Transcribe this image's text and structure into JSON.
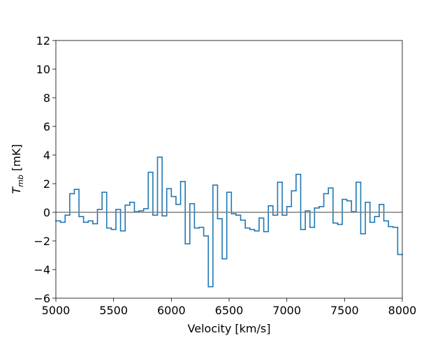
{
  "chart_data": {
    "type": "step",
    "xlabel": "Velocity [km/s]",
    "ylabel": {
      "symbol": "T",
      "subscript": "mb",
      "unit": " [mK]"
    },
    "x": [
      5000,
      5040,
      5080,
      5120,
      5160,
      5200,
      5240,
      5280,
      5320,
      5360,
      5400,
      5440,
      5480,
      5520,
      5560,
      5600,
      5640,
      5680,
      5720,
      5760,
      5800,
      5840,
      5880,
      5920,
      5960,
      6000,
      6040,
      6080,
      6120,
      6160,
      6200,
      6240,
      6280,
      6320,
      6360,
      6400,
      6440,
      6480,
      6520,
      6560,
      6600,
      6640,
      6680,
      6720,
      6760,
      6800,
      6840,
      6880,
      6920,
      6960,
      7000,
      7040,
      7080,
      7120,
      7160,
      7200,
      7240,
      7280,
      7320,
      7360,
      7400,
      7440,
      7480,
      7520,
      7560,
      7600,
      7640,
      7680,
      7720,
      7760,
      7800,
      7840,
      7880,
      7920,
      7960
    ],
    "series": [
      {
        "color": "#1f77b4",
        "values": [
          -0.6,
          -0.7,
          -0.2,
          1.3,
          1.6,
          -0.3,
          -0.7,
          -0.6,
          -0.8,
          0.2,
          1.4,
          -1.1,
          -1.2,
          0.2,
          -1.3,
          0.5,
          0.7,
          0.05,
          0.1,
          0.25,
          2.8,
          -0.2,
          3.85,
          -0.25,
          1.65,
          1.1,
          0.55,
          2.15,
          -2.2,
          0.6,
          -1.1,
          -1.05,
          -1.65,
          -5.2,
          1.9,
          -0.45,
          -3.25,
          1.4,
          -0.1,
          -0.2,
          -0.55,
          -1.1,
          -1.2,
          -1.3,
          -0.4,
          -1.35,
          0.45,
          -0.2,
          2.1,
          -0.2,
          0.4,
          1.5,
          2.65,
          -1.2,
          0.1,
          -1.05,
          0.3,
          0.4,
          1.3,
          1.7,
          -0.75,
          -0.85,
          0.9,
          0.8,
          0.05,
          2.1,
          -1.5,
          0.7,
          -0.7,
          -0.3,
          0.55,
          -0.6,
          -1.0,
          -1.05,
          -2.95
        ]
      }
    ],
    "hline": {
      "value": 0,
      "color": "#808080"
    },
    "xlim": [
      5000,
      8000
    ],
    "xticks": [
      5000,
      5500,
      6000,
      6500,
      7000,
      7500,
      8000
    ],
    "ylim": [
      -6,
      12
    ],
    "yticks": [
      {
        "value": -6,
        "label": "−6"
      },
      {
        "value": -4,
        "label": "−4"
      },
      {
        "value": -2,
        "label": "−2"
      },
      0,
      2,
      4,
      6,
      8,
      10,
      12
    ]
  }
}
